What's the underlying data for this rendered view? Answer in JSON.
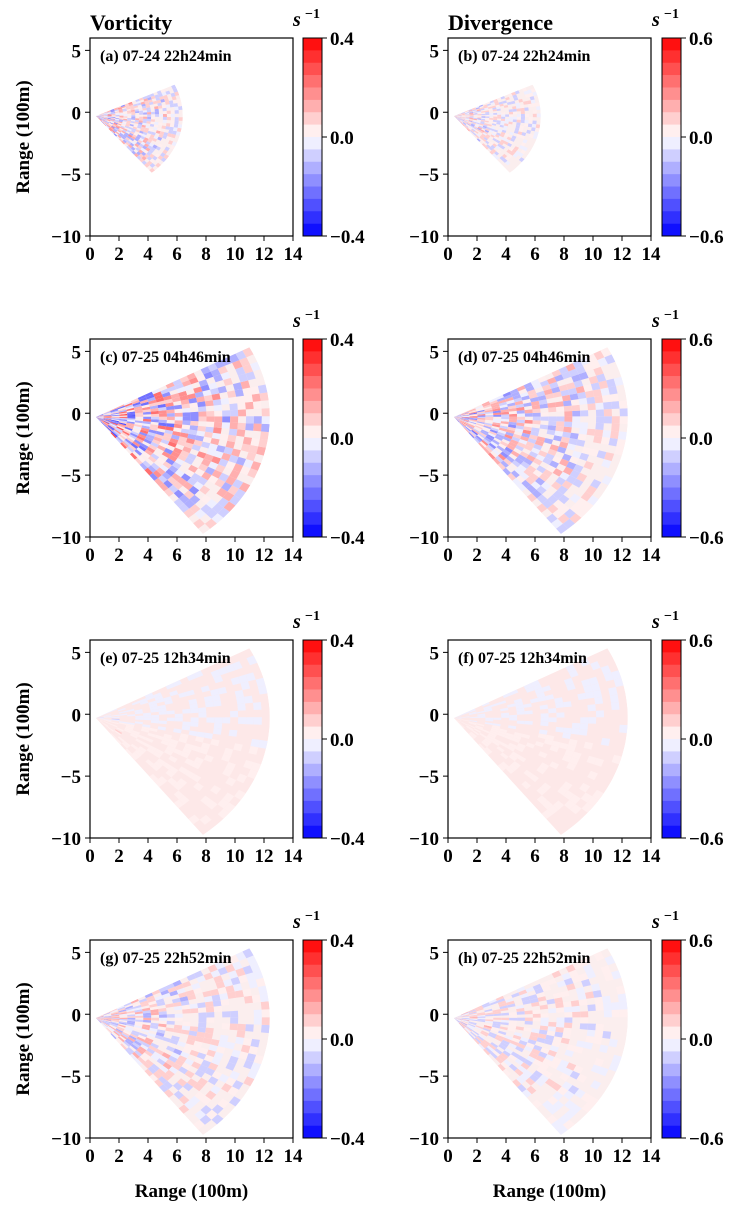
{
  "column_titles": [
    "Vorticity",
    "Divergence"
  ],
  "colorbar_unit": "s",
  "colorbar_unit_exponent": "−1",
  "chart_data": {
    "type": "heatmap",
    "xlabel": "Range (100m)",
    "ylabel": "Range (100m)",
    "xlim": [
      0,
      14
    ],
    "ylim": [
      -10,
      6
    ],
    "x_ticks": [
      "0",
      "2",
      "4",
      "6",
      "8",
      "10",
      "12",
      "14"
    ],
    "y_ticks": [
      "5",
      "0",
      "−5",
      "−10"
    ],
    "colormap": {
      "low": "#0000ff",
      "mid": "#ffffff",
      "high": "#ff0000",
      "levels": 16
    },
    "colorbars": [
      {
        "field": "Vorticity",
        "ticks": [
          "0.4",
          "0.0",
          "−0.4"
        ],
        "vmin": -0.4,
        "vmax": 0.4
      },
      {
        "field": "Divergence",
        "ticks": [
          "0.6",
          "0.0",
          "−0.6"
        ],
        "vmin": -0.6,
        "vmax": 0.6
      }
    ],
    "panels": [
      {
        "label": "(a) 07-24 22h24min",
        "field": "Vorticity",
        "sector_radius": 6,
        "theta_range_deg": [
          -50,
          25
        ],
        "activity": 0.55,
        "seed": 3
      },
      {
        "label": "(b) 07-24 22h24min",
        "field": "Divergence",
        "sector_radius": 6,
        "theta_range_deg": [
          -50,
          25
        ],
        "activity": 0.35,
        "seed": 7
      },
      {
        "label": "(c) 07-25 04h46min",
        "field": "Vorticity",
        "sector_radius": 12,
        "theta_range_deg": [
          -52,
          28
        ],
        "activity": 0.75,
        "seed": 11
      },
      {
        "label": "(d) 07-25 04h46min",
        "field": "Divergence",
        "sector_radius": 12,
        "theta_range_deg": [
          -52,
          28
        ],
        "activity": 0.55,
        "seed": 19
      },
      {
        "label": "(e) 07-25 12h34min",
        "field": "Vorticity",
        "sector_radius": 12,
        "theta_range_deg": [
          -52,
          28
        ],
        "activity": 0.12,
        "seed": 23
      },
      {
        "label": "(f) 07-25 12h34min",
        "field": "Divergence",
        "sector_radius": 12,
        "theta_range_deg": [
          -52,
          28
        ],
        "activity": 0.1,
        "seed": 29
      },
      {
        "label": "(g) 07-25 22h52min",
        "field": "Vorticity",
        "sector_radius": 12,
        "theta_range_deg": [
          -52,
          28
        ],
        "activity": 0.4,
        "seed": 31
      },
      {
        "label": "(h) 07-25 22h52min",
        "field": "Divergence",
        "sector_radius": 12,
        "theta_range_deg": [
          -52,
          28
        ],
        "activity": 0.3,
        "seed": 37
      }
    ]
  }
}
